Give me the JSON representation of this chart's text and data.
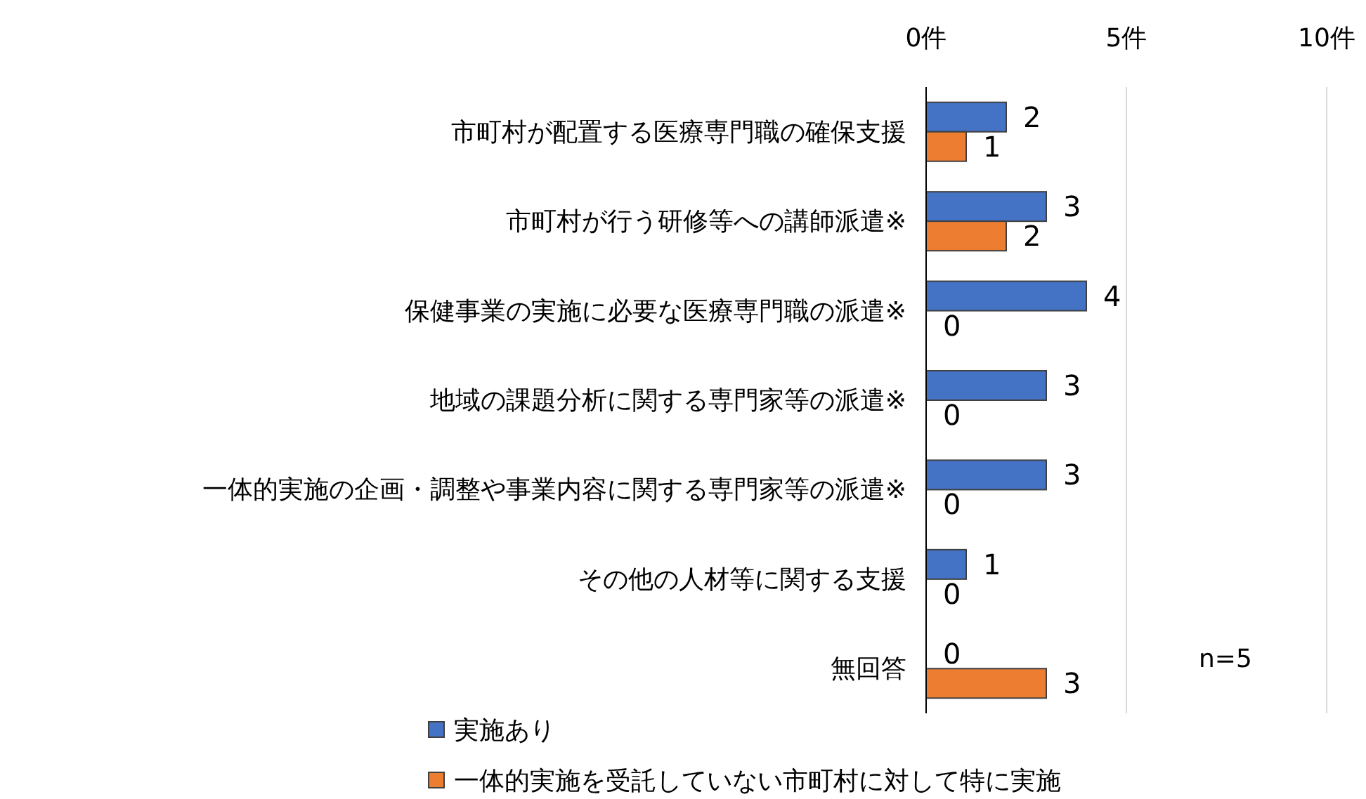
{
  "chart_data": {
    "type": "bar",
    "orientation": "horizontal",
    "categories": [
      "市町村が配置する医療専門職の確保支援",
      "市町村が行う研修等への講師派遣※",
      "保健事業の実施に必要な医療専門職の派遣※",
      "地域の課題分析に関する専門家等の派遣※",
      "一体的実施の企画・調整や事業内容に関する専門家等の派遣※",
      "その他の人材等に関する支援",
      "無回答"
    ],
    "series": [
      {
        "name": "実施あり",
        "color": "#4472c4",
        "values": [
          2,
          3,
          4,
          3,
          3,
          1,
          0
        ]
      },
      {
        "name": "一体的実施を受託していない市町村に対して特に実施",
        "color": "#ed7d31",
        "values": [
          1,
          2,
          0,
          0,
          0,
          0,
          3
        ]
      }
    ],
    "xlim": [
      0,
      10
    ],
    "xticks": [
      {
        "value": 0,
        "label": "0件"
      },
      {
        "value": 5,
        "label": "5件"
      },
      {
        "value": 10,
        "label": "10件"
      }
    ],
    "grid": "x",
    "legend": "bottom",
    "data_labels": true,
    "annotations": [
      "n=5"
    ]
  }
}
